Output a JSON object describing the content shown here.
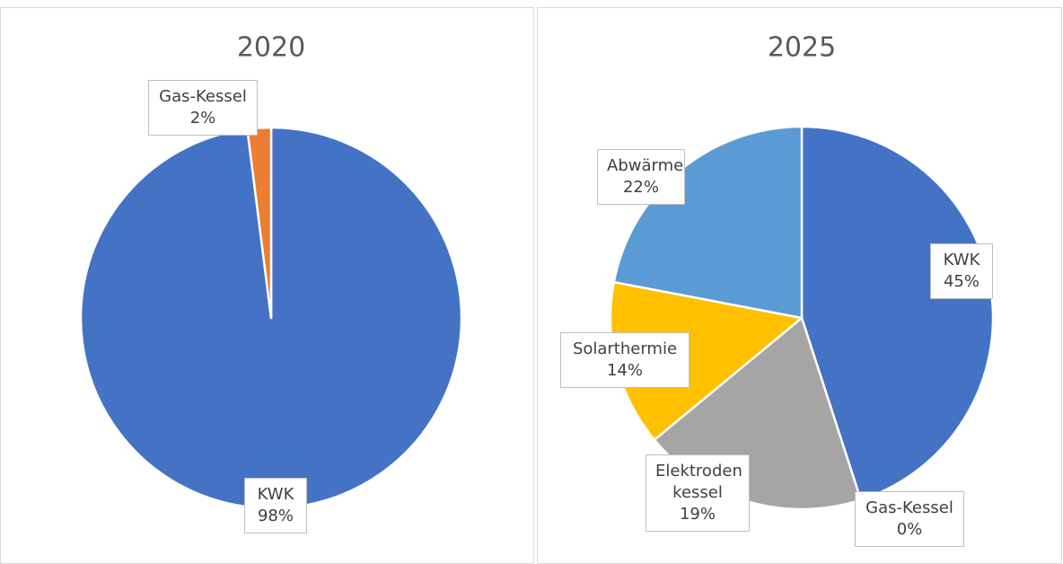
{
  "chart_data": [
    {
      "type": "pie",
      "title": "2020",
      "categories": [
        "KWK",
        "Gas-Kessel"
      ],
      "values": [
        98,
        2
      ],
      "value_labels": [
        "98%",
        "2%"
      ],
      "colors": [
        "#4472c4",
        "#ed7d31"
      ]
    },
    {
      "type": "pie",
      "title": "2025",
      "categories": [
        "KWK",
        "Gas-Kessel",
        "Elektroden kessel",
        "Solarthermie",
        "Abwärme"
      ],
      "values": [
        45,
        0,
        19,
        14,
        22
      ],
      "value_labels": [
        "45%",
        "0%",
        "19%",
        "14%",
        "22%"
      ],
      "colors": [
        "#4472c4",
        "#ed7d31",
        "#a5a5a5",
        "#ffc000",
        "#5b9bd5"
      ]
    }
  ]
}
